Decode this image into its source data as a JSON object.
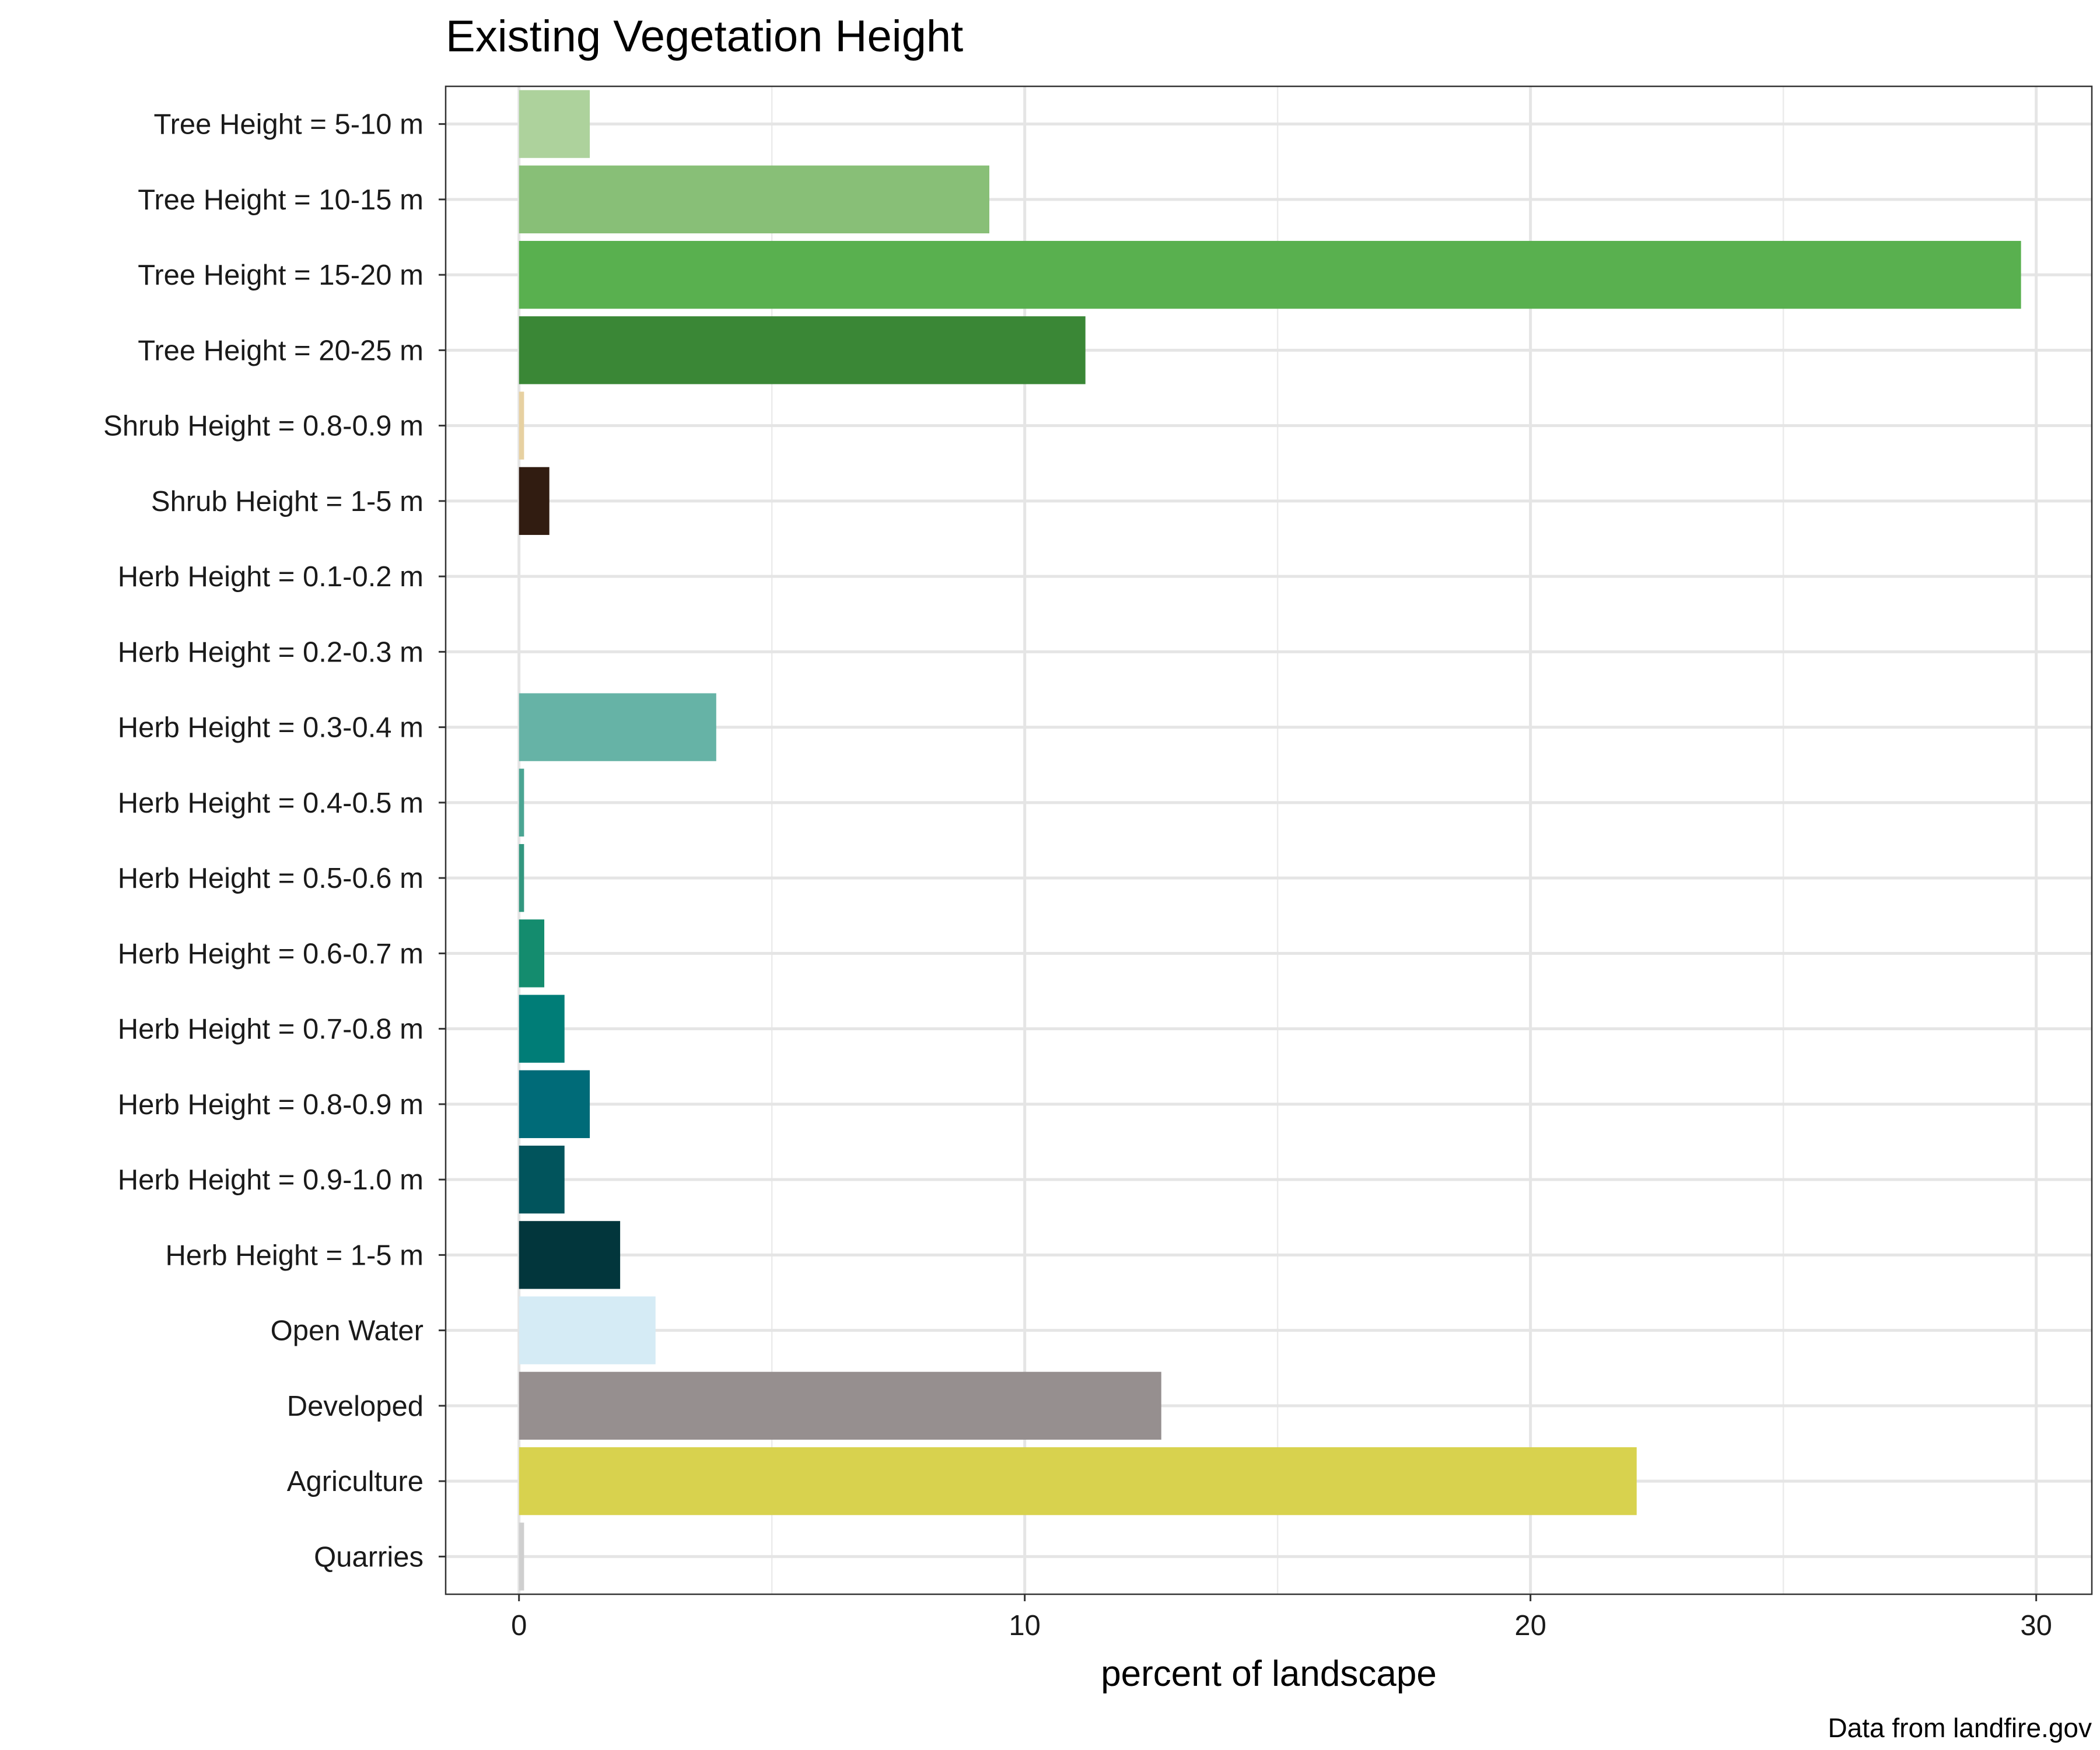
{
  "chart_data": {
    "type": "bar",
    "orientation": "horizontal",
    "title": "Existing Vegetation Height",
    "xlabel": "percent of landscape",
    "ylabel": "",
    "caption": "Data from landfire.gov",
    "xlim": [
      -1.45,
      31.1
    ],
    "xticks": [
      0,
      10,
      20,
      30
    ],
    "grid": true,
    "legend": "none",
    "categories": [
      "Tree Height = 5-10 m",
      "Tree Height = 10-15 m",
      "Tree Height = 15-20 m",
      "Tree Height = 20-25 m",
      "Shrub Height = 0.8-0.9 m",
      "Shrub Height = 1-5 m",
      "Herb Height = 0.1-0.2 m",
      "Herb Height = 0.2-0.3 m",
      "Herb Height = 0.3-0.4 m",
      "Herb Height = 0.4-0.5 m",
      "Herb Height = 0.5-0.6 m",
      "Herb Height = 0.6-0.7 m",
      "Herb Height = 0.7-0.8 m",
      "Herb Height = 0.8-0.9 m",
      "Herb Height = 0.9-1.0 m",
      "Herb Height = 1-5 m",
      "Open Water",
      "Developed",
      "Agriculture",
      "Quarries"
    ],
    "values": [
      1.4,
      9.3,
      29.7,
      11.2,
      0.1,
      0.6,
      0.0,
      0.0,
      3.9,
      0.1,
      0.1,
      0.5,
      0.9,
      1.4,
      0.9,
      2.0,
      2.7,
      12.7,
      22.1,
      0.1
    ],
    "colors": [
      "#add29c",
      "#88bf77",
      "#59b04f",
      "#3a8736",
      "#e7d1a1",
      "#311c11",
      "#ffffff",
      "#ffffff",
      "#66b3a6",
      "#4ba593",
      "#32977f",
      "#148c6e",
      "#007d77",
      "#006b78",
      "#01545c",
      "#02363c",
      "#d5ebf5",
      "#968f8f",
      "#d8d24e",
      "#cfcfcf"
    ]
  }
}
